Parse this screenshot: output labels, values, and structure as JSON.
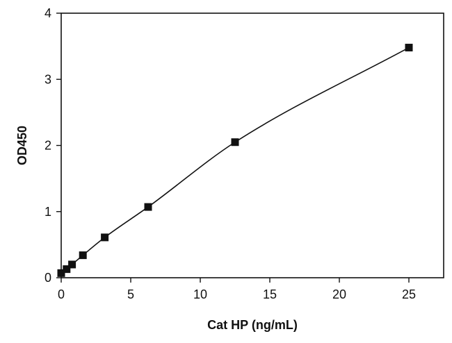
{
  "colors": {
    "line": "#111111",
    "marker": "#111111",
    "axis": "#111111",
    "background": "#ffffff"
  },
  "chart_data": {
    "type": "scatter",
    "title": "",
    "xlabel": "Cat HP (ng/mL)",
    "ylabel": "OD450",
    "xlim": [
      0,
      27.5
    ],
    "ylim": [
      0,
      4
    ],
    "xticks": [
      0,
      5,
      10,
      15,
      20,
      25
    ],
    "yticks": [
      0,
      1,
      2,
      3,
      4
    ],
    "grid": false,
    "legend": "none",
    "series": [
      {
        "marker": "square",
        "fit": "smooth-curve",
        "x": [
          0,
          0.39,
          0.78,
          1.56,
          3.13,
          6.25,
          12.5,
          25
        ],
        "y": [
          0.07,
          0.13,
          0.2,
          0.34,
          0.61,
          1.07,
          2.05,
          3.48
        ]
      }
    ]
  }
}
